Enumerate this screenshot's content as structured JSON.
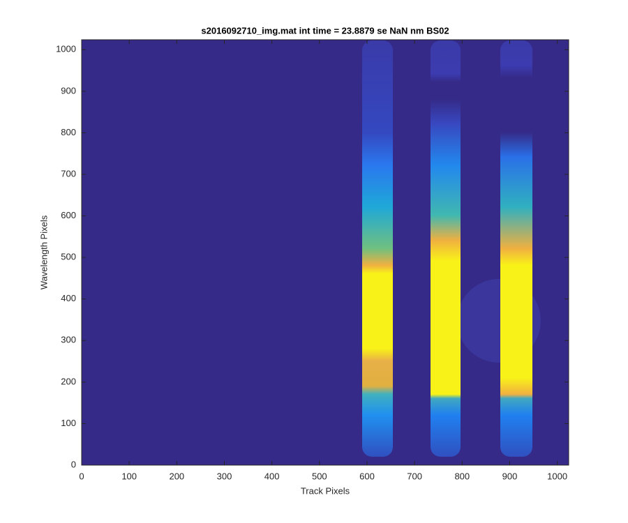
{
  "chart_data": {
    "type": "image",
    "title": "s2016092710_img.mat int time = 23.8879 se  NaN nm BS02",
    "xlabel": "Track Pixels",
    "ylabel": "Wavelength Pixels",
    "xlim": [
      0,
      1024
    ],
    "ylim": [
      0,
      1024
    ],
    "xticks": [
      0,
      100,
      200,
      300,
      400,
      500,
      600,
      700,
      800,
      900,
      1000
    ],
    "yticks": [
      0,
      100,
      200,
      300,
      400,
      500,
      600,
      700,
      800,
      900,
      1000
    ],
    "background": "#352a87"
  }
}
